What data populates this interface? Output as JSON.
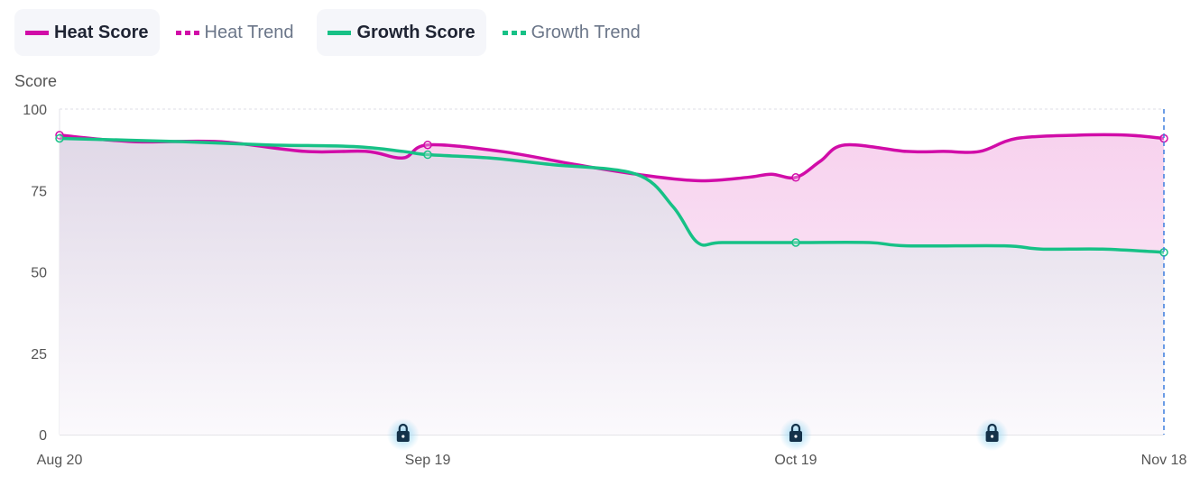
{
  "legend": [
    {
      "label": "Heat Score",
      "color": "#d10ca8",
      "style": "solid",
      "active": true
    },
    {
      "label": "Heat Trend",
      "color": "#d10ca8",
      "style": "dotted",
      "active": false
    },
    {
      "label": "Growth Score",
      "color": "#17c186",
      "style": "solid",
      "active": true
    },
    {
      "label": "Growth Trend",
      "color": "#17c186",
      "style": "dotted",
      "active": false
    }
  ],
  "chart_data": {
    "type": "area",
    "ylabel": "Score",
    "xlabel": "",
    "ylim": [
      0,
      100
    ],
    "yticks": [
      0,
      25,
      50,
      75,
      100
    ],
    "xticks": [
      "Aug 20",
      "Sep 19",
      "Oct 19",
      "Nov 18"
    ],
    "grid": true,
    "legend_position": "top-left",
    "series": [
      {
        "name": "Heat Score",
        "color": "#d10ca8",
        "points": [
          [
            "Aug 20",
            92
          ],
          [
            "Aug 26",
            90
          ],
          [
            "Sep 2",
            90
          ],
          [
            "Sep 9",
            87
          ],
          [
            "Sep 14",
            87
          ],
          [
            "Sep 17",
            85
          ],
          [
            "Sep 19",
            89
          ],
          [
            "Sep 25",
            87
          ],
          [
            "Oct 1",
            83
          ],
          [
            "Oct 6",
            80
          ],
          [
            "Oct 11",
            78
          ],
          [
            "Oct 15",
            79
          ],
          [
            "Oct 17",
            80
          ],
          [
            "Oct 19",
            79
          ],
          [
            "Oct 21",
            84
          ],
          [
            "Oct 23",
            89
          ],
          [
            "Oct 28",
            87
          ],
          [
            "Oct 31",
            87
          ],
          [
            "Nov 3",
            87
          ],
          [
            "Nov 6",
            91
          ],
          [
            "Nov 11",
            92
          ],
          [
            "Nov 15",
            92
          ],
          [
            "Nov 18",
            91
          ]
        ]
      },
      {
        "name": "Growth Score",
        "color": "#17c186",
        "points": [
          [
            "Aug 20",
            91
          ],
          [
            "Aug 30",
            90
          ],
          [
            "Sep 6",
            89
          ],
          [
            "Sep 13",
            88.5
          ],
          [
            "Sep 17",
            87
          ],
          [
            "Sep 19",
            86
          ],
          [
            "Sep 24",
            85
          ],
          [
            "Sep 29",
            83
          ],
          [
            "Oct 6",
            80
          ],
          [
            "Oct 9",
            70
          ],
          [
            "Oct 11",
            59
          ],
          [
            "Oct 13",
            59
          ],
          [
            "Oct 19",
            59
          ],
          [
            "Oct 25",
            59
          ],
          [
            "Oct 28",
            58
          ],
          [
            "Nov 5",
            58
          ],
          [
            "Nov 8",
            57
          ],
          [
            "Nov 13",
            57
          ],
          [
            "Nov 18",
            56
          ]
        ]
      }
    ],
    "point_markers": [
      "Aug 20",
      "Sep 19",
      "Oct 19",
      "Nov 18"
    ],
    "lock_markers": [
      "Sep 17",
      "Oct 19",
      "Nov 4"
    ],
    "cursor_date": "Nov 18"
  }
}
